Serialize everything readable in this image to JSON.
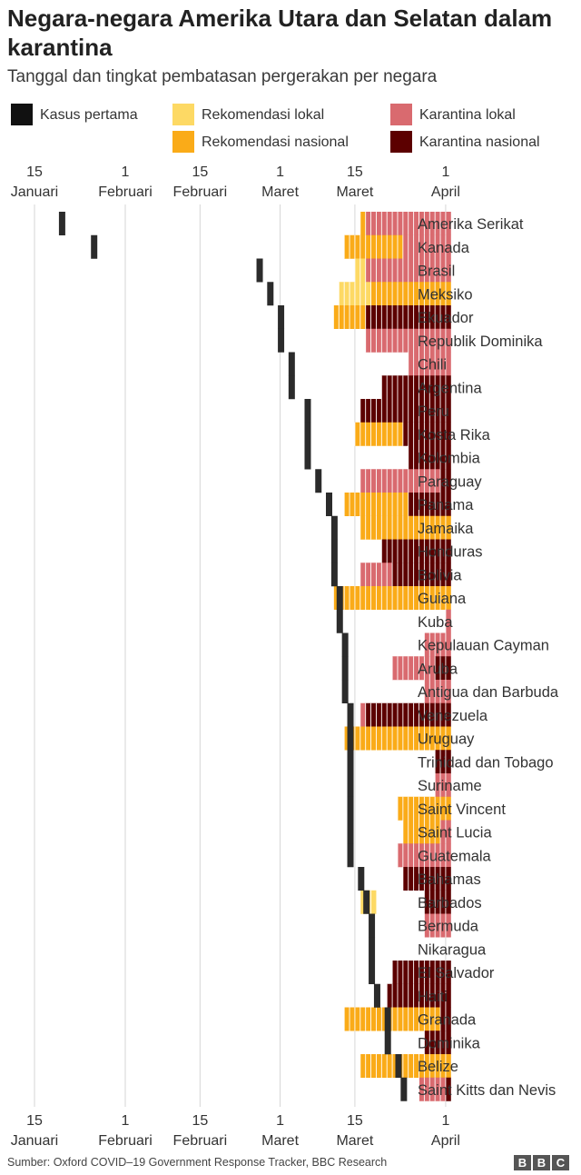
{
  "chart_data": {
    "type": "timeline",
    "title": "Negara-negara Amerika Utara dan Selatan dalam karantina",
    "subtitle": "Tanggal dan tingkat pembatasan pergerakan per negara",
    "x_axis": {
      "type": "date",
      "range": [
        "2020-01-10",
        "2020-04-01"
      ],
      "ticks": [
        {
          "date": "2020-01-15",
          "line1": "15",
          "line2": "Januari"
        },
        {
          "date": "2020-02-01",
          "line1": "1",
          "line2": "Februari"
        },
        {
          "date": "2020-02-15",
          "line1": "15",
          "line2": "Februari"
        },
        {
          "date": "2020-03-01",
          "line1": "1",
          "line2": "Maret"
        },
        {
          "date": "2020-03-15",
          "line1": "15",
          "line2": "Maret"
        },
        {
          "date": "2020-04-01",
          "line1": "1",
          "line2": "April"
        }
      ],
      "position": "top and bottom",
      "grid": true
    },
    "legend": {
      "placement": "top",
      "entries": [
        {
          "key": "first_case",
          "label": "Kasus pertama",
          "color": "#111111"
        },
        {
          "key": "rec_local",
          "label": "Rekomendasi lokal",
          "color": "#FDD964"
        },
        {
          "key": "rec_national",
          "label": "Rekomendasi nasional",
          "color": "#FAAB18"
        },
        {
          "key": "q_local",
          "label": "Karantina lokal",
          "color": "#D96A6F"
        },
        {
          "key": "q_national",
          "label": "Karantina nasional",
          "color": "#5C0000"
        }
      ]
    },
    "countries": [
      {
        "name": "Amerika Serikat",
        "first_case": "2020-01-20",
        "periods": [
          [
            "rec_national",
            "2020-03-16",
            "2020-03-16"
          ],
          [
            "q_local",
            "2020-03-17",
            "2020-04-01"
          ]
        ]
      },
      {
        "name": "Kanada",
        "first_case": "2020-01-26",
        "periods": [
          [
            "rec_national",
            "2020-03-13",
            "2020-03-23"
          ],
          [
            "q_local",
            "2020-03-24",
            "2020-04-01"
          ]
        ]
      },
      {
        "name": "Brasil",
        "first_case": "2020-02-26",
        "periods": [
          [
            "rec_local",
            "2020-03-15",
            "2020-03-16"
          ],
          [
            "q_local",
            "2020-03-17",
            "2020-04-01"
          ]
        ]
      },
      {
        "name": "Meksiko",
        "first_case": "2020-02-28",
        "periods": [
          [
            "rec_local",
            "2020-03-12",
            "2020-03-17"
          ],
          [
            "rec_national",
            "2020-03-18",
            "2020-04-01"
          ]
        ]
      },
      {
        "name": "Ekuador",
        "first_case": "2020-03-01",
        "periods": [
          [
            "rec_national",
            "2020-03-11",
            "2020-03-16"
          ],
          [
            "q_national",
            "2020-03-17",
            "2020-04-01"
          ]
        ]
      },
      {
        "name": "Republik Dominika",
        "first_case": "2020-03-01",
        "periods": [
          [
            "q_local",
            "2020-03-17",
            "2020-04-01"
          ]
        ]
      },
      {
        "name": "Chili",
        "first_case": "2020-03-03",
        "periods": [
          [
            "q_local",
            "2020-03-25",
            "2020-04-01"
          ]
        ]
      },
      {
        "name": "Argentina",
        "first_case": "2020-03-03",
        "periods": [
          [
            "q_national",
            "2020-03-20",
            "2020-04-01"
          ]
        ]
      },
      {
        "name": "Peru",
        "first_case": "2020-03-06",
        "periods": [
          [
            "q_national",
            "2020-03-16",
            "2020-04-01"
          ]
        ]
      },
      {
        "name": "Kosta Rika",
        "first_case": "2020-03-06",
        "periods": [
          [
            "rec_national",
            "2020-03-15",
            "2020-03-23"
          ],
          [
            "q_national",
            "2020-03-24",
            "2020-04-01"
          ]
        ]
      },
      {
        "name": "Kolombia",
        "first_case": "2020-03-06",
        "periods": [
          [
            "q_national",
            "2020-03-25",
            "2020-04-01"
          ]
        ]
      },
      {
        "name": "Paraguay",
        "first_case": "2020-03-08",
        "periods": [
          [
            "q_local",
            "2020-03-16",
            "2020-03-30"
          ],
          [
            "q_national",
            "2020-03-31",
            "2020-04-01"
          ]
        ]
      },
      {
        "name": "Panama",
        "first_case": "2020-03-10",
        "periods": [
          [
            "rec_national",
            "2020-03-13",
            "2020-03-24"
          ],
          [
            "q_national",
            "2020-03-25",
            "2020-04-01"
          ]
        ]
      },
      {
        "name": "Jamaika",
        "first_case": "2020-03-11",
        "periods": [
          [
            "rec_national",
            "2020-03-16",
            "2020-04-01"
          ]
        ]
      },
      {
        "name": "Honduras",
        "first_case": "2020-03-11",
        "periods": [
          [
            "q_national",
            "2020-03-20",
            "2020-04-01"
          ]
        ]
      },
      {
        "name": "Bolivia",
        "first_case": "2020-03-11",
        "periods": [
          [
            "q_local",
            "2020-03-16",
            "2020-03-21"
          ],
          [
            "q_national",
            "2020-03-22",
            "2020-04-01"
          ]
        ]
      },
      {
        "name": "Guiana",
        "first_case": "2020-03-12",
        "periods": [
          [
            "rec_national",
            "2020-03-11",
            "2020-04-01"
          ]
        ]
      },
      {
        "name": "Kuba",
        "first_case": "2020-03-12",
        "periods": [
          [
            "q_local",
            "2020-04-01",
            "2020-04-01"
          ]
        ]
      },
      {
        "name": "Kepulauan Cayman",
        "first_case": "2020-03-13",
        "periods": [
          [
            "q_local",
            "2020-03-28",
            "2020-04-01"
          ]
        ]
      },
      {
        "name": "Aruba",
        "first_case": "2020-03-13",
        "periods": [
          [
            "q_local",
            "2020-03-22",
            "2020-03-29"
          ],
          [
            "q_national",
            "2020-03-30",
            "2020-04-01"
          ]
        ]
      },
      {
        "name": "Antigua dan Barbuda",
        "first_case": "2020-03-13",
        "periods": [
          [
            "q_local",
            "2020-03-28",
            "2020-04-01"
          ]
        ]
      },
      {
        "name": "Venezuela",
        "first_case": "2020-03-14",
        "periods": [
          [
            "q_local",
            "2020-03-16",
            "2020-03-16"
          ],
          [
            "q_national",
            "2020-03-17",
            "2020-04-01"
          ]
        ]
      },
      {
        "name": "Uruguay",
        "first_case": "2020-03-14",
        "periods": [
          [
            "rec_national",
            "2020-03-13",
            "2020-04-01"
          ]
        ]
      },
      {
        "name": "Trinidad dan Tobago",
        "first_case": "2020-03-14",
        "periods": [
          [
            "q_national",
            "2020-03-30",
            "2020-04-01"
          ]
        ]
      },
      {
        "name": "Suriname",
        "first_case": "2020-03-14",
        "periods": [
          [
            "q_local",
            "2020-03-30",
            "2020-04-01"
          ]
        ]
      },
      {
        "name": "Saint Vincent",
        "first_case": "2020-03-14",
        "periods": [
          [
            "rec_national",
            "2020-03-23",
            "2020-04-01"
          ]
        ]
      },
      {
        "name": "Saint Lucia",
        "first_case": "2020-03-14",
        "periods": [
          [
            "rec_national",
            "2020-03-24",
            "2020-03-30"
          ],
          [
            "q_local",
            "2020-03-31",
            "2020-04-01"
          ]
        ]
      },
      {
        "name": "Guatemala",
        "first_case": "2020-03-14",
        "periods": [
          [
            "q_local",
            "2020-03-23",
            "2020-04-01"
          ]
        ]
      },
      {
        "name": "Bahamas",
        "first_case": "2020-03-16",
        "periods": [
          [
            "q_national",
            "2020-03-24",
            "2020-04-01"
          ]
        ]
      },
      {
        "name": "Barbados",
        "first_case": "2020-03-17",
        "periods": [
          [
            "rec_local",
            "2020-03-16",
            "2020-03-18"
          ],
          [
            "q_national",
            "2020-03-28",
            "2020-04-01"
          ]
        ]
      },
      {
        "name": "Bermuda",
        "first_case": "2020-03-18",
        "periods": [
          [
            "q_local",
            "2020-03-28",
            "2020-04-01"
          ]
        ]
      },
      {
        "name": "Nikaragua",
        "first_case": "2020-03-18",
        "periods": []
      },
      {
        "name": "El Salvador",
        "first_case": "2020-03-18",
        "periods": [
          [
            "q_national",
            "2020-03-22",
            "2020-04-01"
          ]
        ]
      },
      {
        "name": "Haiti",
        "first_case": "2020-03-19",
        "periods": [
          [
            "q_national",
            "2020-03-21",
            "2020-04-01"
          ]
        ]
      },
      {
        "name": "Granada",
        "first_case": "2020-03-21",
        "periods": [
          [
            "rec_national",
            "2020-03-13",
            "2020-03-30"
          ],
          [
            "q_national",
            "2020-03-31",
            "2020-04-01"
          ]
        ]
      },
      {
        "name": "Dominika",
        "first_case": "2020-03-21",
        "periods": [
          [
            "q_national",
            "2020-03-28",
            "2020-04-01"
          ]
        ]
      },
      {
        "name": "Belize",
        "first_case": "2020-03-23",
        "periods": [
          [
            "rec_national",
            "2020-03-16",
            "2020-04-01"
          ]
        ]
      },
      {
        "name": "Saint Kitts dan Nevis",
        "first_case": "2020-03-24",
        "periods": [
          [
            "q_local",
            "2020-03-27",
            "2020-03-31"
          ],
          [
            "q_national",
            "2020-04-01",
            "2020-04-01"
          ]
        ]
      }
    ]
  },
  "footer": {
    "source": "Sumber: Oxford COVID–19 Government Response Tracker, BBC Research",
    "logo": [
      "B",
      "B",
      "C"
    ]
  }
}
